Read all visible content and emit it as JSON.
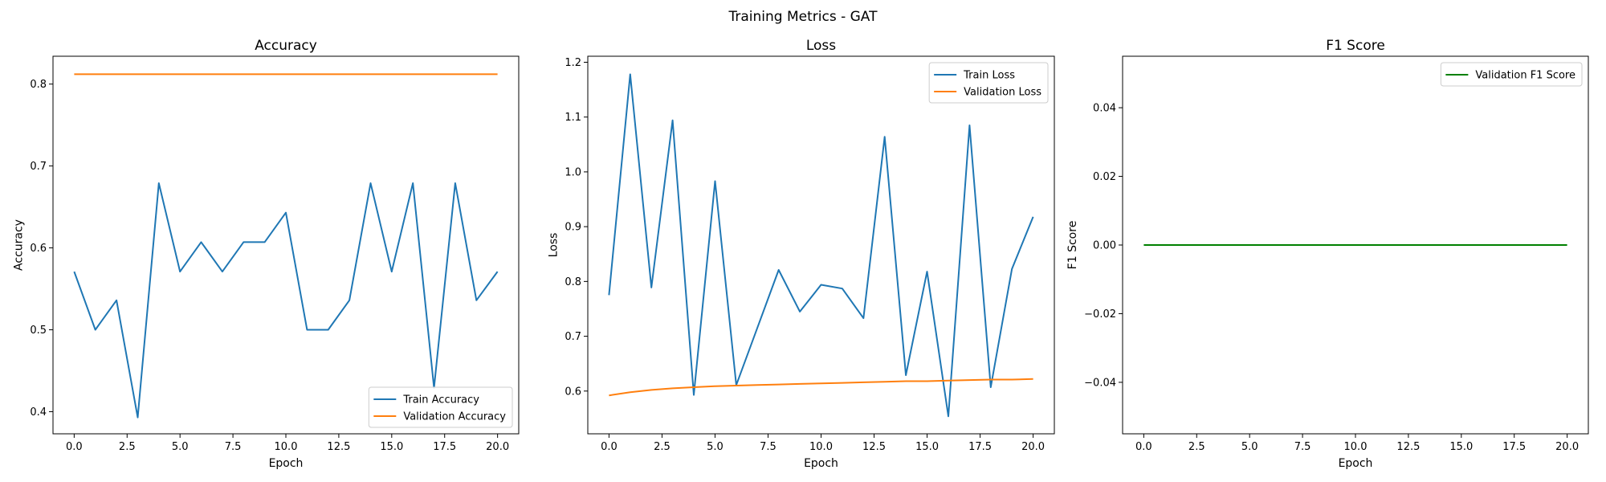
{
  "figure": {
    "title": "Training Metrics - GAT"
  },
  "colors": {
    "train": "#1f77b4",
    "validation": "#ff7f0e",
    "f1": "#008000"
  },
  "chart_data": [
    {
      "type": "line",
      "id": "accuracy",
      "title": "Accuracy",
      "xlabel": "Epoch",
      "ylabel": "Accuracy",
      "xlim": [
        -1.0,
        21.0
      ],
      "ylim": [
        0.373,
        0.834
      ],
      "xticks": [
        0.0,
        2.5,
        5.0,
        7.5,
        10.0,
        12.5,
        15.0,
        17.5,
        20.0
      ],
      "xtick_labels": [
        "0.0",
        "2.5",
        "5.0",
        "7.5",
        "10.0",
        "12.5",
        "15.0",
        "17.5",
        "20.0"
      ],
      "yticks": [
        0.4,
        0.5,
        0.6,
        0.7,
        0.8
      ],
      "ytick_labels": [
        "0.4",
        "0.5",
        "0.6",
        "0.7",
        "0.8"
      ],
      "legend_position": "lower right",
      "grid": false,
      "series": [
        {
          "name": "Train Accuracy",
          "color_key": "train",
          "x": [
            0,
            1,
            2,
            3,
            4,
            5,
            6,
            7,
            8,
            9,
            10,
            11,
            12,
            13,
            14,
            15,
            16,
            17,
            18,
            19,
            20
          ],
          "y": [
            0.571,
            0.5,
            0.536,
            0.393,
            0.679,
            0.571,
            0.607,
            0.571,
            0.607,
            0.607,
            0.643,
            0.5,
            0.5,
            0.536,
            0.679,
            0.571,
            0.679,
            0.429,
            0.679,
            0.536,
            0.571
          ]
        },
        {
          "name": "Validation Accuracy",
          "color_key": "validation",
          "x": [
            0,
            1,
            2,
            3,
            4,
            5,
            6,
            7,
            8,
            9,
            10,
            11,
            12,
            13,
            14,
            15,
            16,
            17,
            18,
            19,
            20
          ],
          "y": [
            0.812,
            0.812,
            0.812,
            0.812,
            0.812,
            0.812,
            0.812,
            0.812,
            0.812,
            0.812,
            0.812,
            0.812,
            0.812,
            0.812,
            0.812,
            0.812,
            0.812,
            0.812,
            0.812,
            0.812,
            0.812
          ]
        }
      ]
    },
    {
      "type": "line",
      "id": "loss",
      "title": "Loss",
      "xlabel": "Epoch",
      "ylabel": "Loss",
      "xlim": [
        -1.0,
        21.0
      ],
      "ylim": [
        0.522,
        1.211
      ],
      "xticks": [
        0.0,
        2.5,
        5.0,
        7.5,
        10.0,
        12.5,
        15.0,
        17.5,
        20.0
      ],
      "xtick_labels": [
        "0.0",
        "2.5",
        "5.0",
        "7.5",
        "10.0",
        "12.5",
        "15.0",
        "17.5",
        "20.0"
      ],
      "yticks": [
        0.6,
        0.7,
        0.8,
        0.9,
        1.0,
        1.1,
        1.2
      ],
      "ytick_labels": [
        "0.6",
        "0.7",
        "0.8",
        "0.9",
        "1.0",
        "1.1",
        "1.2"
      ],
      "legend_position": "upper right",
      "grid": false,
      "series": [
        {
          "name": "Train Loss",
          "color_key": "train",
          "x": [
            0,
            1,
            2,
            3,
            4,
            5,
            6,
            7,
            8,
            9,
            10,
            11,
            12,
            13,
            14,
            15,
            16,
            17,
            18,
            19,
            20
          ],
          "y": [
            0.775,
            1.178,
            0.789,
            1.094,
            0.593,
            0.983,
            0.611,
            0.716,
            0.821,
            0.745,
            0.794,
            0.787,
            0.733,
            1.064,
            0.629,
            0.818,
            0.554,
            1.085,
            0.607,
            0.823,
            0.918
          ]
        },
        {
          "name": "Validation Loss",
          "color_key": "validation",
          "x": [
            0,
            1,
            2,
            3,
            4,
            5,
            6,
            7,
            8,
            9,
            10,
            11,
            12,
            13,
            14,
            15,
            16,
            17,
            18,
            19,
            20
          ],
          "y": [
            0.592,
            0.598,
            0.602,
            0.605,
            0.607,
            0.609,
            0.61,
            0.611,
            0.612,
            0.613,
            0.614,
            0.615,
            0.616,
            0.617,
            0.618,
            0.618,
            0.619,
            0.62,
            0.621,
            0.621,
            0.622
          ]
        }
      ]
    },
    {
      "type": "line",
      "id": "f1",
      "title": "F1 Score",
      "xlabel": "Epoch",
      "ylabel": "F1 Score",
      "xlim": [
        -1.0,
        21.0
      ],
      "ylim": [
        -0.055,
        0.055
      ],
      "xticks": [
        0.0,
        2.5,
        5.0,
        7.5,
        10.0,
        12.5,
        15.0,
        17.5,
        20.0
      ],
      "xtick_labels": [
        "0.0",
        "2.5",
        "5.0",
        "7.5",
        "10.0",
        "12.5",
        "15.0",
        "17.5",
        "20.0"
      ],
      "yticks": [
        -0.04,
        -0.02,
        0.0,
        0.02,
        0.04
      ],
      "ytick_labels": [
        "−0.04",
        "−0.02",
        "0.00",
        "0.02",
        "0.04"
      ],
      "legend_position": "upper right",
      "grid": false,
      "series": [
        {
          "name": "Validation F1 Score",
          "color_key": "f1",
          "x": [
            0,
            1,
            2,
            3,
            4,
            5,
            6,
            7,
            8,
            9,
            10,
            11,
            12,
            13,
            14,
            15,
            16,
            17,
            18,
            19,
            20
          ],
          "y": [
            0,
            0,
            0,
            0,
            0,
            0,
            0,
            0,
            0,
            0,
            0,
            0,
            0,
            0,
            0,
            0,
            0,
            0,
            0,
            0,
            0
          ]
        }
      ]
    }
  ]
}
